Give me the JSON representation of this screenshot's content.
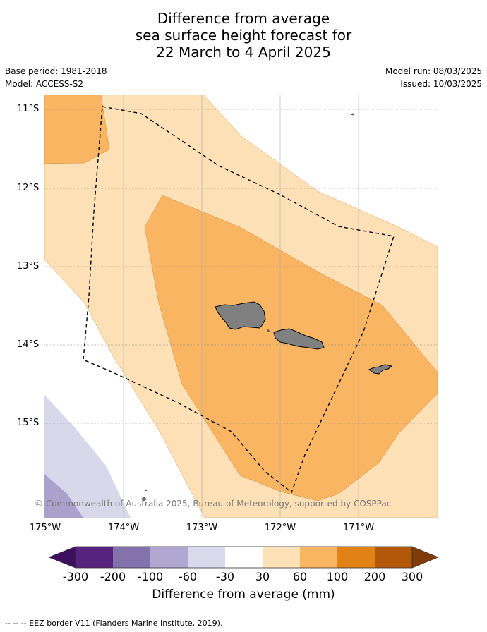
{
  "title": {
    "line1": "Difference from average",
    "line2": "sea surface height forecast for",
    "line3": "22 March to 4 April 2025"
  },
  "meta": {
    "base_period": "Base period: 1981-2018",
    "model": "Model: ACCESS-S2",
    "model_run": "Model run: 08/03/2025",
    "issued": "Issued: 10/03/2025"
  },
  "map": {
    "lat_labels": [
      "11°S",
      "12°S",
      "13°S",
      "14°S",
      "15°S"
    ],
    "lon_labels": [
      "175°W",
      "174°W",
      "173°W",
      "172°W",
      "171°W"
    ],
    "copyright": "© Commonwealth of Australia 2025, Bureau of Meteorology, supported by COSPPac",
    "colors": {
      "land": "#808080",
      "band_30_60": "#fde0b6",
      "band_60_100": "#f9b562",
      "band_m30_m60": "#d8d8ea",
      "band_m60_m100": "#aaa2cc"
    }
  },
  "colorbar": {
    "ticks": [
      "-300",
      "-200",
      "-100",
      "-60",
      "-30",
      "30",
      "60",
      "100",
      "200",
      "300"
    ],
    "colors": [
      "#3d0f5e",
      "#56247f",
      "#8372ac",
      "#b0a8d1",
      "#d9d9ec",
      "#ffffff",
      "#fde0b6",
      "#f9b562",
      "#e08216",
      "#b35808",
      "#7f3b08"
    ],
    "label": "Difference from average (mm)"
  },
  "footer": {
    "legend": "--  --  -- EEZ border V11 (Flanders Marine Institute, 2019)."
  }
}
